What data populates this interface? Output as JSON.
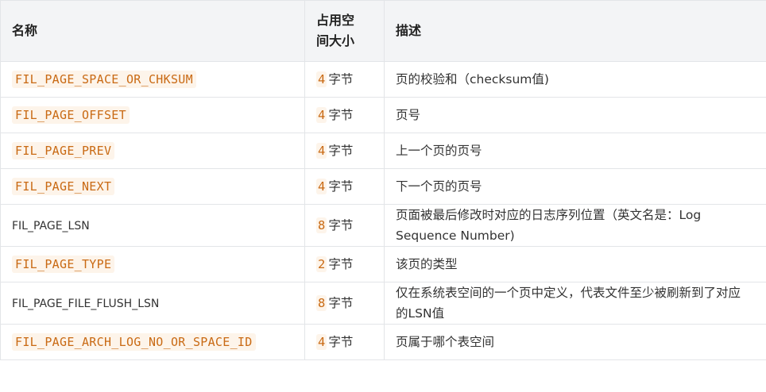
{
  "table": {
    "headers": [
      "名称",
      "占用空间大小",
      "描述"
    ],
    "rows": [
      {
        "name": "FIL_PAGE_SPACE_OR_CHKSUM",
        "code": true,
        "size": 4,
        "unit": "字节",
        "desc": "页的校验和（checksum值)"
      },
      {
        "name": "FIL_PAGE_OFFSET",
        "code": true,
        "size": 4,
        "unit": "字节",
        "desc": "页号"
      },
      {
        "name": "FIL_PAGE_PREV",
        "code": true,
        "size": 4,
        "unit": "字节",
        "desc": "上一个页的页号"
      },
      {
        "name": "FIL_PAGE_NEXT",
        "code": true,
        "size": 4,
        "unit": "字节",
        "desc": "下一个页的页号"
      },
      {
        "name": "FIL_PAGE_LSN",
        "code": false,
        "size": 8,
        "unit": "字节",
        "desc": "页面被最后修改时对应的日志序列位置（英文名是：Log Sequence Number)"
      },
      {
        "name": "FIL_PAGE_TYPE",
        "code": true,
        "size": 2,
        "unit": "字节",
        "desc": "该页的类型"
      },
      {
        "name": "FIL_PAGE_FILE_FLUSH_LSN",
        "code": false,
        "size": 8,
        "unit": "字节",
        "desc": "仅在系统表空间的一个页中定义，代表文件至少被刷新到了对应的LSN值"
      },
      {
        "name": "FIL_PAGE_ARCH_LOG_NO_OR_SPACE_ID",
        "code": true,
        "size": 4,
        "unit": "字节",
        "desc": "页属于哪个表空间"
      }
    ]
  }
}
